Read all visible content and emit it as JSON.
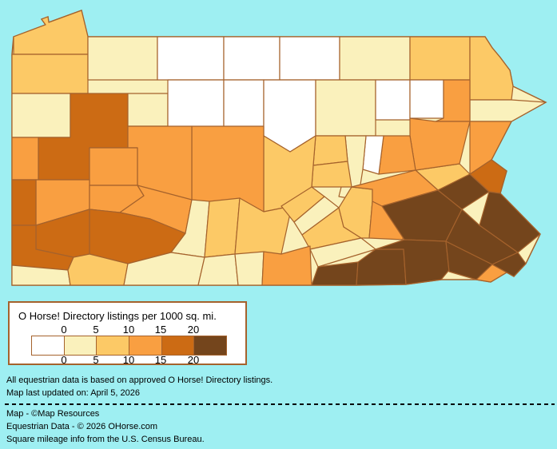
{
  "background_color": "#9EEFF2",
  "map": {
    "region": "Pennsylvania counties choropleth",
    "border_color": "#A5622C",
    "state_fill": "#FAF1BC",
    "bucket_colors": {
      "0": "#FFFFFF",
      "0-5": "#FAF1BC",
      "5-10": "#FCC966",
      "10-15": "#F99F41",
      "15-20": "#CC6B14",
      "20+": "#74451C"
    },
    "counties": [
      {
        "name": "Erie",
        "value": "5-10"
      },
      {
        "name": "Crawford",
        "value": "5-10"
      },
      {
        "name": "Warren",
        "value": "0-5"
      },
      {
        "name": "McKean",
        "value": "0"
      },
      {
        "name": "Potter",
        "value": "0"
      },
      {
        "name": "Tioga",
        "value": "0"
      },
      {
        "name": "Bradford",
        "value": "0-5"
      },
      {
        "name": "Susquehanna",
        "value": "5-10"
      },
      {
        "name": "Wayne",
        "value": "5-10"
      },
      {
        "name": "Pike",
        "value": "0-5"
      },
      {
        "name": "Mercer",
        "value": "0-5"
      },
      {
        "name": "Venango",
        "value": "15-20"
      },
      {
        "name": "Forest",
        "value": "0-5"
      },
      {
        "name": "Elk",
        "value": "0"
      },
      {
        "name": "Cameron",
        "value": "0"
      },
      {
        "name": "Clinton",
        "value": "0"
      },
      {
        "name": "Lycoming",
        "value": "0-5"
      },
      {
        "name": "Sullivan",
        "value": "0"
      },
      {
        "name": "Wyoming",
        "value": "0"
      },
      {
        "name": "Lackawanna",
        "value": "10-15"
      },
      {
        "name": "Monroe",
        "value": "10-15"
      },
      {
        "name": "Carbon",
        "value": "5-10"
      },
      {
        "name": "Luzerne",
        "value": "10-15"
      },
      {
        "name": "Columbia",
        "value": "10-15"
      },
      {
        "name": "Montour",
        "value": "0"
      },
      {
        "name": "Northumberland",
        "value": "0-5"
      },
      {
        "name": "Union",
        "value": "5-10"
      },
      {
        "name": "Snyder",
        "value": "5-10"
      },
      {
        "name": "Centre",
        "value": "5-10"
      },
      {
        "name": "Clearfield",
        "value": "10-15"
      },
      {
        "name": "Jefferson",
        "value": "10-15"
      },
      {
        "name": "Clarion",
        "value": "10-15"
      },
      {
        "name": "Lawrence",
        "value": "10-15"
      },
      {
        "name": "Butler",
        "value": "10-15"
      },
      {
        "name": "Armstrong",
        "value": "10-15"
      },
      {
        "name": "Indiana",
        "value": "10-15"
      },
      {
        "name": "Cambria",
        "value": "0-5"
      },
      {
        "name": "Blair",
        "value": "5-10"
      },
      {
        "name": "Huntingdon",
        "value": "5-10"
      },
      {
        "name": "Mifflin",
        "value": "5-10"
      },
      {
        "name": "Juniata",
        "value": "0-5"
      },
      {
        "name": "Perry",
        "value": "5-10"
      },
      {
        "name": "Dauphin",
        "value": "5-10"
      },
      {
        "name": "Lebanon",
        "value": "10-15"
      },
      {
        "name": "Schuylkill",
        "value": "10-15"
      },
      {
        "name": "Berks",
        "value": "20+"
      },
      {
        "name": "Lehigh",
        "value": "20+"
      },
      {
        "name": "Northampton",
        "value": "15-20"
      },
      {
        "name": "Beaver",
        "value": "15-20"
      },
      {
        "name": "Allegheny",
        "value": "15-20"
      },
      {
        "name": "Westmoreland",
        "value": "15-20"
      },
      {
        "name": "Washington",
        "value": "15-20"
      },
      {
        "name": "Greene",
        "value": "0-5"
      },
      {
        "name": "Fayette",
        "value": "5-10"
      },
      {
        "name": "Somerset",
        "value": "0-5"
      },
      {
        "name": "Bedford",
        "value": "0-5"
      },
      {
        "name": "Fulton",
        "value": "0-5"
      },
      {
        "name": "Franklin",
        "value": "10-15"
      },
      {
        "name": "Cumberland",
        "value": "0-5"
      },
      {
        "name": "Adams",
        "value": "20+"
      },
      {
        "name": "York",
        "value": "20+"
      },
      {
        "name": "Lancaster",
        "value": "20+"
      },
      {
        "name": "Chester",
        "value": "20+"
      },
      {
        "name": "Delaware",
        "value": "10-15"
      },
      {
        "name": "Montgomery",
        "value": "20+"
      },
      {
        "name": "Philadelphia",
        "value": "20+"
      },
      {
        "name": "Bucks",
        "value": "20+"
      }
    ]
  },
  "legend": {
    "title": "O Horse! Directory listings per 1000 sq. mi.",
    "ticks": [
      "0",
      "5",
      "10",
      "15",
      "20"
    ],
    "swatches": [
      "#FFFFFF",
      "#FAF1BC",
      "#FCC966",
      "#F99F41",
      "#CC6B14",
      "#74451C"
    ]
  },
  "notes": {
    "line1": "All equestrian data is based on approved O Horse! Directory listings.",
    "line2": "Map last updated on: April 5, 2026"
  },
  "credits": {
    "line1": "Map - ©Map Resources",
    "line2": "Equestrian Data - © 2026 OHorse.com",
    "line3": "Square mileage info from the U.S. Census Bureau."
  }
}
